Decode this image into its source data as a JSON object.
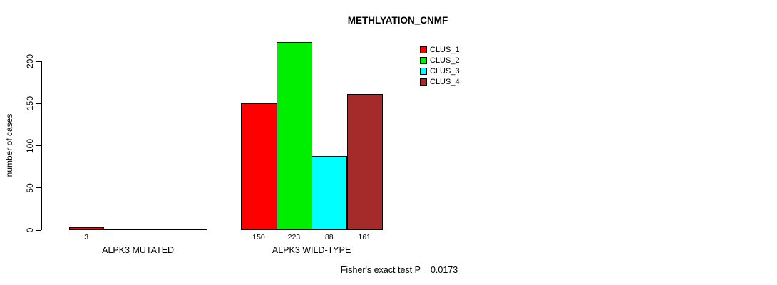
{
  "chart_data": {
    "type": "bar",
    "title": "METHLYATION_CNMF",
    "xlabel": "",
    "ylabel": "number of cases",
    "ylim": [
      0,
      200
    ],
    "yticks": [
      0,
      50,
      100,
      150,
      200
    ],
    "grid": false,
    "legend_position": "top-right",
    "categories": [
      "ALPK3 MUTATED",
      "ALPK3 WILD-TYPE"
    ],
    "series": [
      {
        "name": "CLUS_1",
        "color": "#ff0000",
        "values": [
          3,
          150
        ]
      },
      {
        "name": "CLUS_2",
        "color": "#00ee00",
        "values": [
          0,
          223
        ]
      },
      {
        "name": "CLUS_3",
        "color": "#00ffff",
        "values": [
          0,
          88
        ]
      },
      {
        "name": "CLUS_4",
        "color": "#a52a2a",
        "values": [
          0,
          161
        ]
      }
    ],
    "bar_value_labels": [
      [
        "3",
        "",
        "",
        ""
      ],
      [
        "150",
        "223",
        "88",
        "161"
      ]
    ],
    "annotation": "Fisher's exact test P = 0.0173"
  }
}
